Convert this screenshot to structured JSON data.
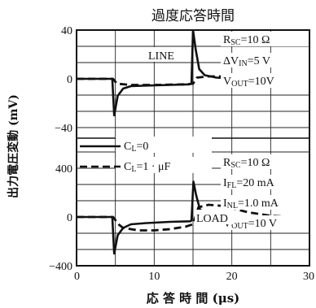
{
  "chart_data": {
    "type": "line",
    "title": "過度応答時間",
    "xlabel": "応 答 時 間 (μs)",
    "ylabel": "出力電圧変動 (mV)",
    "xlim": [
      0,
      30
    ],
    "x_ticks": [
      0,
      10,
      20,
      30
    ],
    "grid": true,
    "legend_position": "left-middle",
    "legend": [
      {
        "label": "C",
        "sub": "L",
        "value": "=0",
        "style": "solid"
      },
      {
        "label": "C",
        "sub": "L",
        "value": "=1 · μF",
        "style": "dashed"
      }
    ],
    "panels": [
      {
        "name": "LINE",
        "ylim": [
          -40,
          40
        ],
        "y_ticks": [
          -40,
          0,
          40
        ],
        "y_tick_labels": [
          "−40",
          "0",
          "40"
        ],
        "conditions": [
          [
            "R",
            "SC",
            "=10 Ω"
          ],
          [
            "ΔV",
            "IN",
            "=5 V"
          ],
          [
            "V",
            "OUT",
            "=10V"
          ]
        ],
        "series": [
          {
            "style": "solid",
            "points": [
              [
                0,
                0
              ],
              [
                4.6,
                0
              ],
              [
                4.85,
                -30
              ],
              [
                5.3,
                -14
              ],
              [
                6,
                -8
              ],
              [
                7,
                -6
              ],
              [
                9,
                -5.5
              ],
              [
                12,
                -5
              ],
              [
                14.5,
                -4.5
              ],
              [
                14.8,
                -4
              ],
              [
                15,
                40
              ],
              [
                15.35,
                24
              ],
              [
                15.8,
                8
              ],
              [
                16.5,
                3
              ],
              [
                18,
                1
              ],
              [
                21,
                0
              ],
              [
                30,
                0
              ]
            ]
          },
          {
            "style": "dashed",
            "points": [
              [
                0,
                0
              ],
              [
                4.7,
                0
              ],
              [
                5.2,
                -4
              ],
              [
                7,
                -5
              ],
              [
                10,
                -5
              ],
              [
                14,
                -4.5
              ],
              [
                15,
                -4
              ],
              [
                15.5,
                1
              ],
              [
                17,
                2
              ],
              [
                20,
                2
              ],
              [
                24,
                1.5
              ],
              [
                28,
                0.5
              ],
              [
                30,
                0
              ]
            ]
          }
        ]
      },
      {
        "name": "LOAD",
        "ylim": [
          -400,
          400
        ],
        "y_ticks": [
          -400,
          0,
          400
        ],
        "y_tick_labels": [
          "−400",
          "0",
          "400"
        ],
        "conditions": [
          [
            "R",
            "SC",
            "=10 Ω"
          ],
          [
            "I",
            "FL",
            "=20 mA"
          ],
          [
            "I",
            "NL",
            "=1.0 mA"
          ],
          [
            "V",
            "OUT",
            "=10 V"
          ]
        ],
        "series": [
          {
            "style": "solid",
            "points": [
              [
                0,
                0
              ],
              [
                4.6,
                0
              ],
              [
                4.85,
                -300
              ],
              [
                5.3,
                -150
              ],
              [
                6,
                -90
              ],
              [
                7,
                -60
              ],
              [
                9,
                -50
              ],
              [
                12,
                -40
              ],
              [
                14.6,
                -35
              ],
              [
                14.8,
                -30
              ],
              [
                15.05,
                290
              ],
              [
                15.4,
                180
              ],
              [
                15.9,
                60
              ],
              [
                17,
                20
              ],
              [
                19,
                5
              ],
              [
                22,
                0
              ],
              [
                30,
                0
              ]
            ]
          },
          {
            "style": "dashed",
            "points": [
              [
                0,
                0
              ],
              [
                4.7,
                0
              ],
              [
                5.4,
                -60
              ],
              [
                6,
                -90
              ],
              [
                8,
                -110
              ],
              [
                10,
                -110
              ],
              [
                12,
                -100
              ],
              [
                14,
                -80
              ],
              [
                15,
                -60
              ],
              [
                15.7,
                80
              ],
              [
                17,
                100
              ],
              [
                19,
                90
              ],
              [
                22,
                40
              ],
              [
                25,
                10
              ],
              [
                28,
                0
              ],
              [
                30,
                0
              ]
            ]
          }
        ]
      }
    ]
  }
}
